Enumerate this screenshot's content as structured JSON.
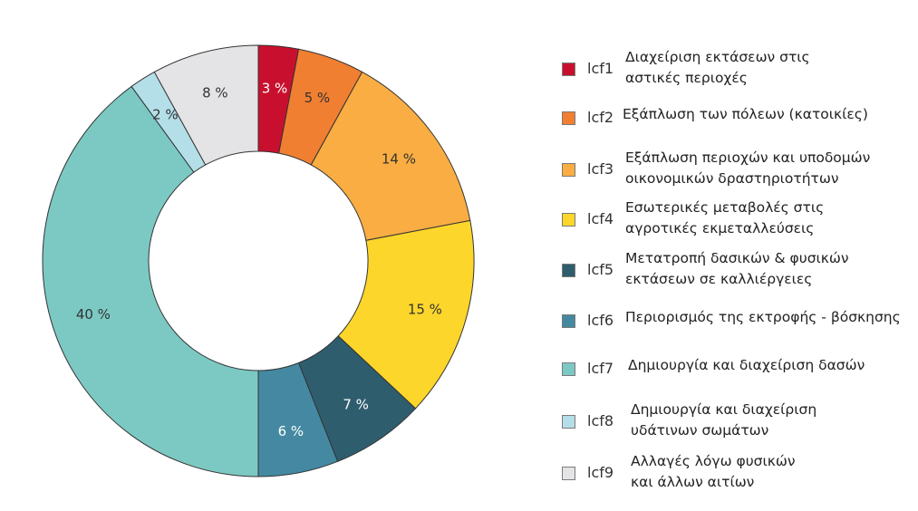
{
  "chart_data": {
    "type": "pie",
    "donut": true,
    "categories": [
      "lcf1",
      "lcf2",
      "lcf3",
      "lcf4",
      "lcf5",
      "lcf6",
      "lcf7",
      "lcf8",
      "lcf9"
    ],
    "values": [
      3,
      5,
      14,
      15,
      7,
      6,
      40,
      2,
      8
    ],
    "value_labels": [
      "3 %",
      "5 %",
      "14 %",
      "15 %",
      "7 %",
      "6 %",
      "40 %",
      "2 %",
      "8 %"
    ],
    "colors": [
      "#c8102e",
      "#f07f32",
      "#f9ad42",
      "#fcd62a",
      "#2e5d6e",
      "#4489a1",
      "#7cc9c4",
      "#b4dfe9",
      "#e4e4e6"
    ],
    "label_colors": [
      "#ffffff",
      "#333333",
      "#333333",
      "#333333",
      "#ffffff",
      "#ffffff",
      "#333333",
      "#333333",
      "#333333"
    ],
    "legend": [
      {
        "code": "lcf1",
        "lines": [
          "Διαχείριση εκτάσεων στις",
          "αστικές περιοχές"
        ]
      },
      {
        "code": "lcf2",
        "lines": [
          "Εξάπλωση των πόλεων (κατοικίες)"
        ]
      },
      {
        "code": "lcf3",
        "lines": [
          "Εξάπλωση περιοχών και υποδομών",
          "οικονομικών δραστηριοτήτων"
        ]
      },
      {
        "code": "lcf4",
        "lines": [
          "Εσωτερικές μεταβολές στις",
          "αγροτικές εκμεταλλεύσεις"
        ]
      },
      {
        "code": "lcf5",
        "lines": [
          "Μετατροπή δασικών & φυσικών",
          "εκτάσεων σε καλλιέργειες"
        ]
      },
      {
        "code": "lcf6",
        "lines": [
          "Περιορισμός της εκτροφής - βόσκησης"
        ]
      },
      {
        "code": "lcf7",
        "lines": [
          "Δημιουργία και διαχείριση δασών"
        ]
      },
      {
        "code": "lcf8",
        "lines": [
          "Δημιουργία και διαχείριση",
          "υδάτινων σωμάτων"
        ]
      },
      {
        "code": "lcf9",
        "lines": [
          "Αλλαγές λόγω φυσικών",
          "και άλλων αιτίων"
        ]
      }
    ],
    "legend_placement": "right"
  }
}
